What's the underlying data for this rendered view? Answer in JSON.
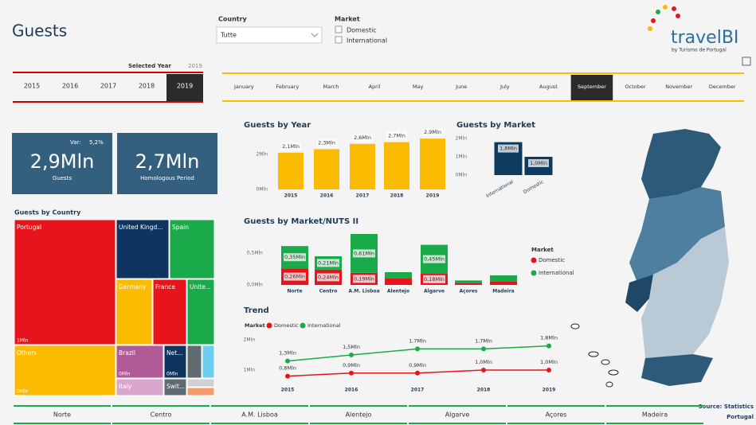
{
  "header": {
    "title": "Guests",
    "logo": "travelBI",
    "logo_subtitle": "by Turismo de Portugal"
  },
  "filters": {
    "country": {
      "label": "Country",
      "value": "Tutte"
    },
    "market": {
      "label": "Market",
      "options": [
        "Domestic",
        "International"
      ]
    }
  },
  "year_slicer": {
    "label": "Selected Year",
    "selected": "2019",
    "years": [
      "2015",
      "2016",
      "2017",
      "2018",
      "2019"
    ]
  },
  "month_slicer": {
    "selected": "September",
    "months": [
      "January",
      "February",
      "March",
      "April",
      "May",
      "June",
      "July",
      "August",
      "September",
      "October",
      "November",
      "December"
    ]
  },
  "kpis": {
    "var_label": "Var:",
    "var_value": "5,2%",
    "guests_value": "2,9Mln",
    "guests_label": "Guests",
    "homologous_value": "2,7Mln",
    "homologous_label": "Homologous Period"
  },
  "chart_data": [
    {
      "type": "bar",
      "title": "Guests by Year",
      "categories": [
        "2015",
        "2016",
        "2017",
        "2018",
        "2019"
      ],
      "values": [
        2.1,
        2.3,
        2.6,
        2.7,
        2.9
      ],
      "value_labels": [
        "2,1Mln",
        "2,3Mln",
        "2,6Mln",
        "2,7Mln",
        "2,9Mln"
      ],
      "color": "#fbbb00",
      "ylim": [
        0,
        3
      ],
      "yticks": [
        {
          "value": 0,
          "label": "0Mln"
        },
        {
          "value": 2,
          "label": "2Mln"
        }
      ]
    },
    {
      "type": "bar",
      "title": "Guests by Market",
      "categories": [
        "International",
        "Domestic"
      ],
      "values": [
        1.8,
        1.0
      ],
      "value_labels": [
        "1,8Mln",
        "1,0Mln"
      ],
      "color": "#0e3a5f",
      "ylim": [
        0,
        2
      ],
      "yticks": [
        {
          "value": 0,
          "label": "0Mln"
        },
        {
          "value": 1,
          "label": "1Mln"
        },
        {
          "value": 2,
          "label": "2Mln"
        }
      ]
    },
    {
      "type": "bar",
      "stacked": true,
      "title": "Guests by Market/NUTS II",
      "legend_title": "Market",
      "categories": [
        "Norte",
        "Centro",
        "A.M. Lisboa",
        "Alentejo",
        "Algarve",
        "Açores",
        "Madeira"
      ],
      "series": [
        {
          "name": "Domestic",
          "color": "#e8141b",
          "values": [
            0.26,
            0.24,
            0.19,
            0.1,
            0.18,
            0.03,
            0.05
          ],
          "value_labels": [
            "0,26Mln",
            "0,24Mln",
            "0,19Mln",
            null,
            "0,18Mln",
            null,
            null
          ]
        },
        {
          "name": "International",
          "color": "#1aaa4a",
          "values": [
            0.35,
            0.21,
            0.61,
            0.1,
            0.45,
            0.04,
            0.1
          ],
          "value_labels": [
            "0,35Mln",
            "0,21Mln",
            "0,61Mln",
            null,
            "0,45Mln",
            null,
            null
          ]
        }
      ],
      "ylim": [
        0,
        0.85
      ],
      "yticks": [
        {
          "value": 0,
          "label": "0,0Mln"
        },
        {
          "value": 0.5,
          "label": "0,5Mln"
        }
      ]
    },
    {
      "type": "line",
      "title": "Trend",
      "legend_title": "Market",
      "categories": [
        "2015",
        "2016",
        "2017",
        "2018",
        "2019"
      ],
      "series": [
        {
          "name": "Domestic",
          "color": "#e8141b",
          "values": [
            0.8,
            0.9,
            0.9,
            1.0,
            1.0
          ],
          "value_labels": [
            "0,8Mln",
            "0,9Mln",
            "0,9Mln",
            "1,0Mln",
            "1,0Mln"
          ]
        },
        {
          "name": "International",
          "color": "#1aaa4a",
          "values": [
            1.3,
            1.5,
            1.7,
            1.7,
            1.8
          ],
          "value_labels": [
            "1,3Mln",
            "1,5Mln",
            "1,7Mln",
            "1,7Mln",
            "1,8Mln"
          ]
        }
      ],
      "ylim": [
        0.6,
        2.1
      ],
      "yticks": [
        {
          "value": 1,
          "label": "1Mln"
        },
        {
          "value": 2,
          "label": "2Mln"
        }
      ]
    }
  ],
  "treemap": {
    "title": "Guests by Country",
    "tiles": [
      {
        "name": "Portugal",
        "label": "1Mln"
      },
      {
        "name": "United Kingd..."
      },
      {
        "name": "Spain"
      },
      {
        "name": "Germany"
      },
      {
        "name": "France"
      },
      {
        "name": "Unite..."
      },
      {
        "name": "Others",
        "label": "0Mln"
      },
      {
        "name": "Brazil",
        "label": "0Mln"
      },
      {
        "name": "Net...",
        "label": "0Mln"
      },
      {
        "name": "Italy"
      },
      {
        "name": "Swit..."
      }
    ]
  },
  "regions": [
    "Norte",
    "Centro",
    "A.M. Lisboa",
    "Alentejo",
    "Algarve",
    "Açores",
    "Madeira"
  ],
  "source": [
    "Source: Statistics",
    "Portugal"
  ]
}
